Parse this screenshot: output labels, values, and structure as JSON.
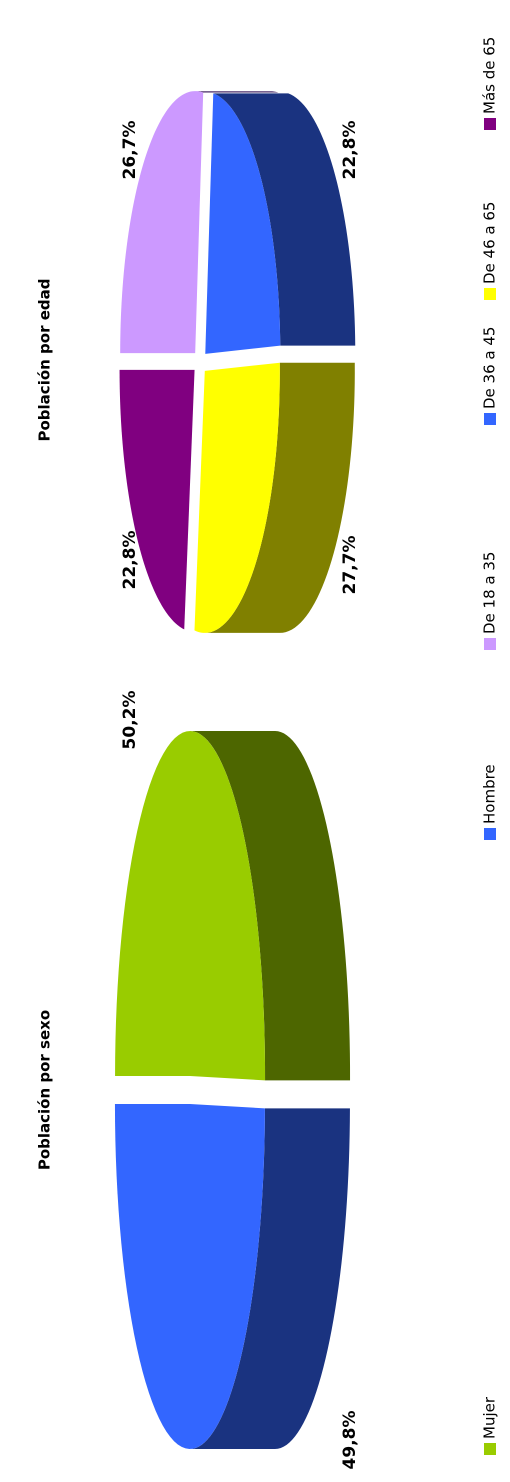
{
  "chart_data": [
    {
      "type": "pie",
      "title": "Población por sexo",
      "categories": [
        "Mujer",
        "Hombre"
      ],
      "values": [
        50.2,
        49.8
      ],
      "value_labels": [
        "50,2%",
        "49,8%"
      ],
      "colors": [
        "#99cc00",
        "#3366ff"
      ]
    },
    {
      "type": "pie",
      "title": "Población por edad",
      "categories": [
        "De 18 a 35",
        "De 36 a 45",
        "De 46 a 65",
        "Más de 65"
      ],
      "values": [
        26.7,
        22.8,
        27.7,
        22.8
      ],
      "value_labels": [
        "26,7%",
        "22,8%",
        "27,7%",
        "22,8%"
      ],
      "colors": [
        "#cc99ff",
        "#3366ff",
        "#ffff00",
        "#800080"
      ]
    }
  ]
}
